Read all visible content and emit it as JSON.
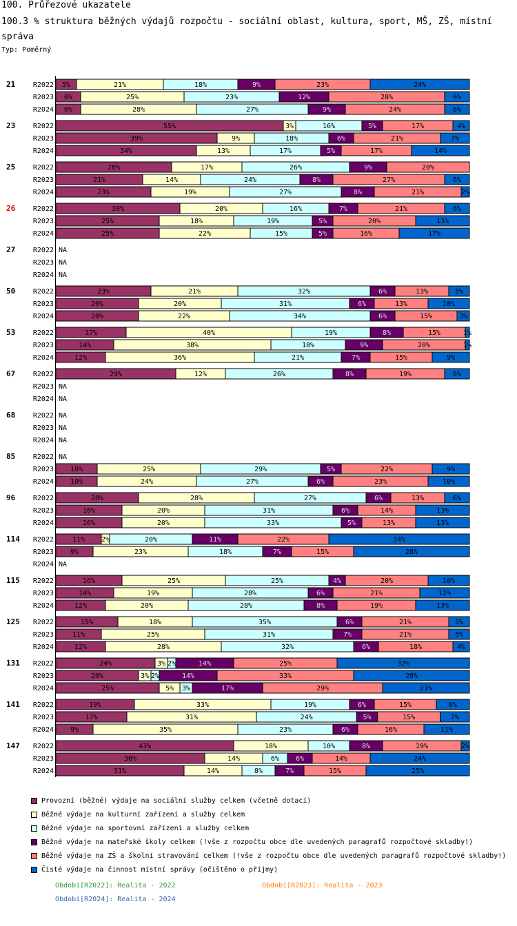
{
  "header": {
    "title": "100. Průřezové ukazatele",
    "subtitle": "100.3 % struktura běžných výdajů rozpočtu - sociální oblast, kultura, sport, MŠ, ZŠ, místní správa",
    "type_label": "Typ: Poměrný"
  },
  "colors": {
    "series": [
      "#993366",
      "#ffffcc",
      "#ccffff",
      "#660066",
      "#ff8080",
      "#0066cc"
    ],
    "highlight_group": "#e00000",
    "period_colors": [
      "#339933",
      "#ff8000",
      "#3366aa"
    ]
  },
  "chart_data": {
    "type": "bar",
    "stacked": true,
    "orientation": "horizontal",
    "unit": "%",
    "series_names": [
      "Provozní (běžné) výdaje na sociální služby celkem (včetně dotací)",
      "Běžné výdaje na kulturní zařízení a služby celkem",
      "Běžné výdaje na sportovní zařízení a služby celkem",
      "Běžné výdaje na mateřské školy celkem (!vše z rozpočtu obce dle uvedených paragrafů rozpočtové skladby!)",
      "Běžné výdaje na ZŠ a školní stravování celkem (!vše z rozpočtu obce dle uvedených paragrafů rozpočtové skladby!)",
      "Čisté výdaje na činnost místní správy (očištěno o příjmy)"
    ],
    "periods": [
      "R2022",
      "R2023",
      "R2024"
    ],
    "highlight_group": "26",
    "na_label": "NA",
    "groups": [
      {
        "id": "21",
        "rows": [
          {
            "values": [
              5,
              21,
              18,
              9,
              23,
              24
            ],
            "labels": [
              "5%",
              "21%",
              "18%",
              "9%",
              "23%",
              "24%"
            ]
          },
          {
            "values": [
              6,
              25,
              23,
              12,
              28,
              6
            ],
            "labels": [
              "6%",
              "25%",
              "23%",
              "12%",
              "28%",
              "6%"
            ]
          },
          {
            "values": [
              6,
              28,
              27,
              9,
              24,
              6
            ],
            "labels": [
              "6%",
              "28%",
              "27%",
              "9%",
              "24%",
              "6%"
            ]
          }
        ]
      },
      {
        "id": "23",
        "rows": [
          {
            "values": [
              55,
              3,
              16,
              5,
              17,
              4
            ],
            "labels": [
              "55%",
              "3%",
              "16%",
              "5%",
              "17%",
              "4%"
            ]
          },
          {
            "values": [
              39,
              9,
              18,
              6,
              21,
              7
            ],
            "labels": [
              "39%",
              "9%",
              "18%",
              "6%",
              "21%",
              "7%"
            ]
          },
          {
            "values": [
              34,
              13,
              17,
              5,
              17,
              14
            ],
            "labels": [
              "34%",
              "13%",
              "17%",
              "5%",
              "17%",
              "14%"
            ]
          }
        ]
      },
      {
        "id": "25",
        "rows": [
          {
            "values": [
              28,
              17,
              26,
              9,
              20,
              0
            ],
            "labels": [
              "28%",
              "17%",
              "26%",
              "9%",
              "20%",
              ""
            ]
          },
          {
            "values": [
              21,
              14,
              24,
              8,
              27,
              6
            ],
            "labels": [
              "21%",
              "14%",
              "24%",
              "8%",
              "27%",
              "6%"
            ]
          },
          {
            "values": [
              23,
              19,
              27,
              8,
              21,
              2
            ],
            "labels": [
              "23%",
              "19%",
              "27%",
              "8%",
              "21%",
              "2%"
            ]
          }
        ]
      },
      {
        "id": "26",
        "rows": [
          {
            "values": [
              30,
              20,
              16,
              7,
              21,
              6
            ],
            "labels": [
              "30%",
              "20%",
              "16%",
              "7%",
              "21%",
              "6%"
            ]
          },
          {
            "values": [
              25,
              18,
              19,
              5,
              20,
              13
            ],
            "labels": [
              "25%",
              "18%",
              "19%",
              "5%",
              "20%",
              "13%"
            ]
          },
          {
            "values": [
              25,
              22,
              15,
              5,
              16,
              17
            ],
            "labels": [
              "25%",
              "22%",
              "15%",
              "5%",
              "16%",
              "17%"
            ]
          }
        ]
      },
      {
        "id": "27",
        "rows": [
          null,
          null,
          null
        ]
      },
      {
        "id": "50",
        "rows": [
          {
            "values": [
              23,
              21,
              32,
              6,
              13,
              5
            ],
            "labels": [
              "23%",
              "21%",
              "32%",
              "6%",
              "13%",
              "5%"
            ]
          },
          {
            "values": [
              20,
              20,
              31,
              6,
              13,
              10
            ],
            "labels": [
              "20%",
              "20%",
              "31%",
              "6%",
              "13%",
              "10%"
            ]
          },
          {
            "values": [
              20,
              22,
              34,
              6,
              15,
              3
            ],
            "labels": [
              "20%",
              "22%",
              "34%",
              "6%",
              "15%",
              "3%"
            ]
          }
        ]
      },
      {
        "id": "53",
        "rows": [
          {
            "values": [
              17,
              40,
              19,
              8,
              15,
              1
            ],
            "labels": [
              "17%",
              "40%",
              "19%",
              "8%",
              "15%",
              "1%"
            ]
          },
          {
            "values": [
              14,
              38,
              18,
              9,
              20,
              1
            ],
            "labels": [
              "14%",
              "38%",
              "18%",
              "9%",
              "20%",
              "1%"
            ]
          },
          {
            "values": [
              12,
              36,
              21,
              7,
              15,
              9
            ],
            "labels": [
              "12%",
              "36%",
              "21%",
              "7%",
              "15%",
              "9%"
            ]
          }
        ]
      },
      {
        "id": "67",
        "rows": [
          {
            "values": [
              29,
              12,
              26,
              8,
              19,
              6
            ],
            "labels": [
              "29%",
              "12%",
              "26%",
              "8%",
              "19%",
              "6%"
            ]
          },
          null,
          null
        ]
      },
      {
        "id": "68",
        "rows": [
          null,
          null,
          null
        ]
      },
      {
        "id": "85",
        "rows": [
          null,
          {
            "values": [
              10,
              25,
              29,
              5,
              22,
              9
            ],
            "labels": [
              "10%",
              "25%",
              "29%",
              "5%",
              "22%",
              "9%"
            ]
          },
          {
            "values": [
              10,
              24,
              27,
              6,
              23,
              10
            ],
            "labels": [
              "10%",
              "24%",
              "27%",
              "6%",
              "23%",
              "10%"
            ]
          }
        ]
      },
      {
        "id": "96",
        "rows": [
          {
            "values": [
              20,
              28,
              27,
              6,
              13,
              6
            ],
            "labels": [
              "20%",
              "28%",
              "27%",
              "6%",
              "13%",
              "6%"
            ]
          },
          {
            "values": [
              16,
              20,
              31,
              6,
              14,
              13
            ],
            "labels": [
              "16%",
              "20%",
              "31%",
              "6%",
              "14%",
              "13%"
            ]
          },
          {
            "values": [
              16,
              20,
              33,
              5,
              13,
              13
            ],
            "labels": [
              "16%",
              "20%",
              "33%",
              "5%",
              "13%",
              "13%"
            ]
          }
        ]
      },
      {
        "id": "114",
        "rows": [
          {
            "values": [
              11,
              2,
              20,
              11,
              22,
              34
            ],
            "labels": [
              "11%",
              "2%",
              "20%",
              "11%",
              "22%",
              "34%"
            ]
          },
          {
            "values": [
              9,
              23,
              18,
              7,
              15,
              28
            ],
            "labels": [
              "9%",
              "23%",
              "18%",
              "7%",
              "15%",
              "28%"
            ]
          },
          null
        ]
      },
      {
        "id": "115",
        "rows": [
          {
            "values": [
              16,
              25,
              25,
              4,
              20,
              10
            ],
            "labels": [
              "16%",
              "25%",
              "25%",
              "4%",
              "20%",
              "10%"
            ]
          },
          {
            "values": [
              14,
              19,
              28,
              6,
              21,
              12
            ],
            "labels": [
              "14%",
              "19%",
              "28%",
              "6%",
              "21%",
              "12%"
            ]
          },
          {
            "values": [
              12,
              20,
              28,
              8,
              19,
              13
            ],
            "labels": [
              "12%",
              "20%",
              "28%",
              "8%",
              "19%",
              "13%"
            ]
          }
        ]
      },
      {
        "id": "125",
        "rows": [
          {
            "values": [
              15,
              18,
              35,
              6,
              21,
              5
            ],
            "labels": [
              "15%",
              "18%",
              "35%",
              "6%",
              "21%",
              "5%"
            ]
          },
          {
            "values": [
              11,
              25,
              31,
              7,
              21,
              5
            ],
            "labels": [
              "11%",
              "25%",
              "31%",
              "7%",
              "21%",
              "5%"
            ]
          },
          {
            "values": [
              12,
              28,
              32,
              6,
              18,
              4
            ],
            "labels": [
              "12%",
              "28%",
              "32%",
              "6%",
              "18%",
              "4%"
            ]
          }
        ]
      },
      {
        "id": "131",
        "rows": [
          {
            "values": [
              24,
              3,
              2,
              14,
              25,
              32
            ],
            "labels": [
              "24%",
              "3%",
              "2%",
              "14%",
              "25%",
              "32%"
            ]
          },
          {
            "values": [
              20,
              3,
              2,
              14,
              33,
              28
            ],
            "labels": [
              "20%",
              "3%",
              "2%",
              "14%",
              "33%",
              "28%"
            ]
          },
          {
            "values": [
              25,
              5,
              3,
              17,
              29,
              21
            ],
            "labels": [
              "25%",
              "5%",
              "3%",
              "17%",
              "29%",
              "21%"
            ]
          }
        ]
      },
      {
        "id": "141",
        "rows": [
          {
            "values": [
              19,
              33,
              19,
              6,
              15,
              8
            ],
            "labels": [
              "19%",
              "33%",
              "19%",
              "6%",
              "15%",
              "8%"
            ]
          },
          {
            "values": [
              17,
              31,
              24,
              5,
              15,
              7
            ],
            "labels": [
              "17%",
              "31%",
              "24%",
              "5%",
              "15%",
              "7%"
            ]
          },
          {
            "values": [
              9,
              35,
              23,
              6,
              16,
              11
            ],
            "labels": [
              "9%",
              "35%",
              "23%",
              "6%",
              "16%",
              "11%"
            ]
          }
        ]
      },
      {
        "id": "147",
        "rows": [
          {
            "values": [
              43,
              18,
              10,
              8,
              19,
              2
            ],
            "labels": [
              "43%",
              "18%",
              "10%",
              "8%",
              "19%",
              "2%"
            ]
          },
          {
            "values": [
              36,
              14,
              6,
              6,
              14,
              24
            ],
            "labels": [
              "36%",
              "14%",
              "6%",
              "6%",
              "14%",
              "24%"
            ]
          },
          {
            "values": [
              31,
              14,
              8,
              7,
              15,
              25
            ],
            "labels": [
              "31%",
              "14%",
              "8%",
              "7%",
              "15%",
              "25%"
            ]
          }
        ]
      }
    ]
  },
  "legend": {
    "items": [
      "Provozní (běžné) výdaje na sociální služby celkem (včetně dotací)",
      "Běžné výdaje na kulturní zařízení a služby celkem",
      "Běžné výdaje na sportovní zařízení a služby celkem",
      "Běžné výdaje na mateřské školy celkem (!vše z rozpočtu obce dle uvedených paragrafů rozpočtové skladby!)",
      "Běžné výdaje na ZŠ a školní stravování celkem (!vše z rozpočtu obce dle uvedených paragrafů rozpočtové skladby!)",
      "Čisté výdaje na činnost místní správy (očištěno o příjmy)"
    ]
  },
  "periods_legend": [
    "Období[R2022]: Realita - 2022",
    "Období[R2023]: Realita - 2023",
    "Období[R2024]: Realita - 2024"
  ]
}
